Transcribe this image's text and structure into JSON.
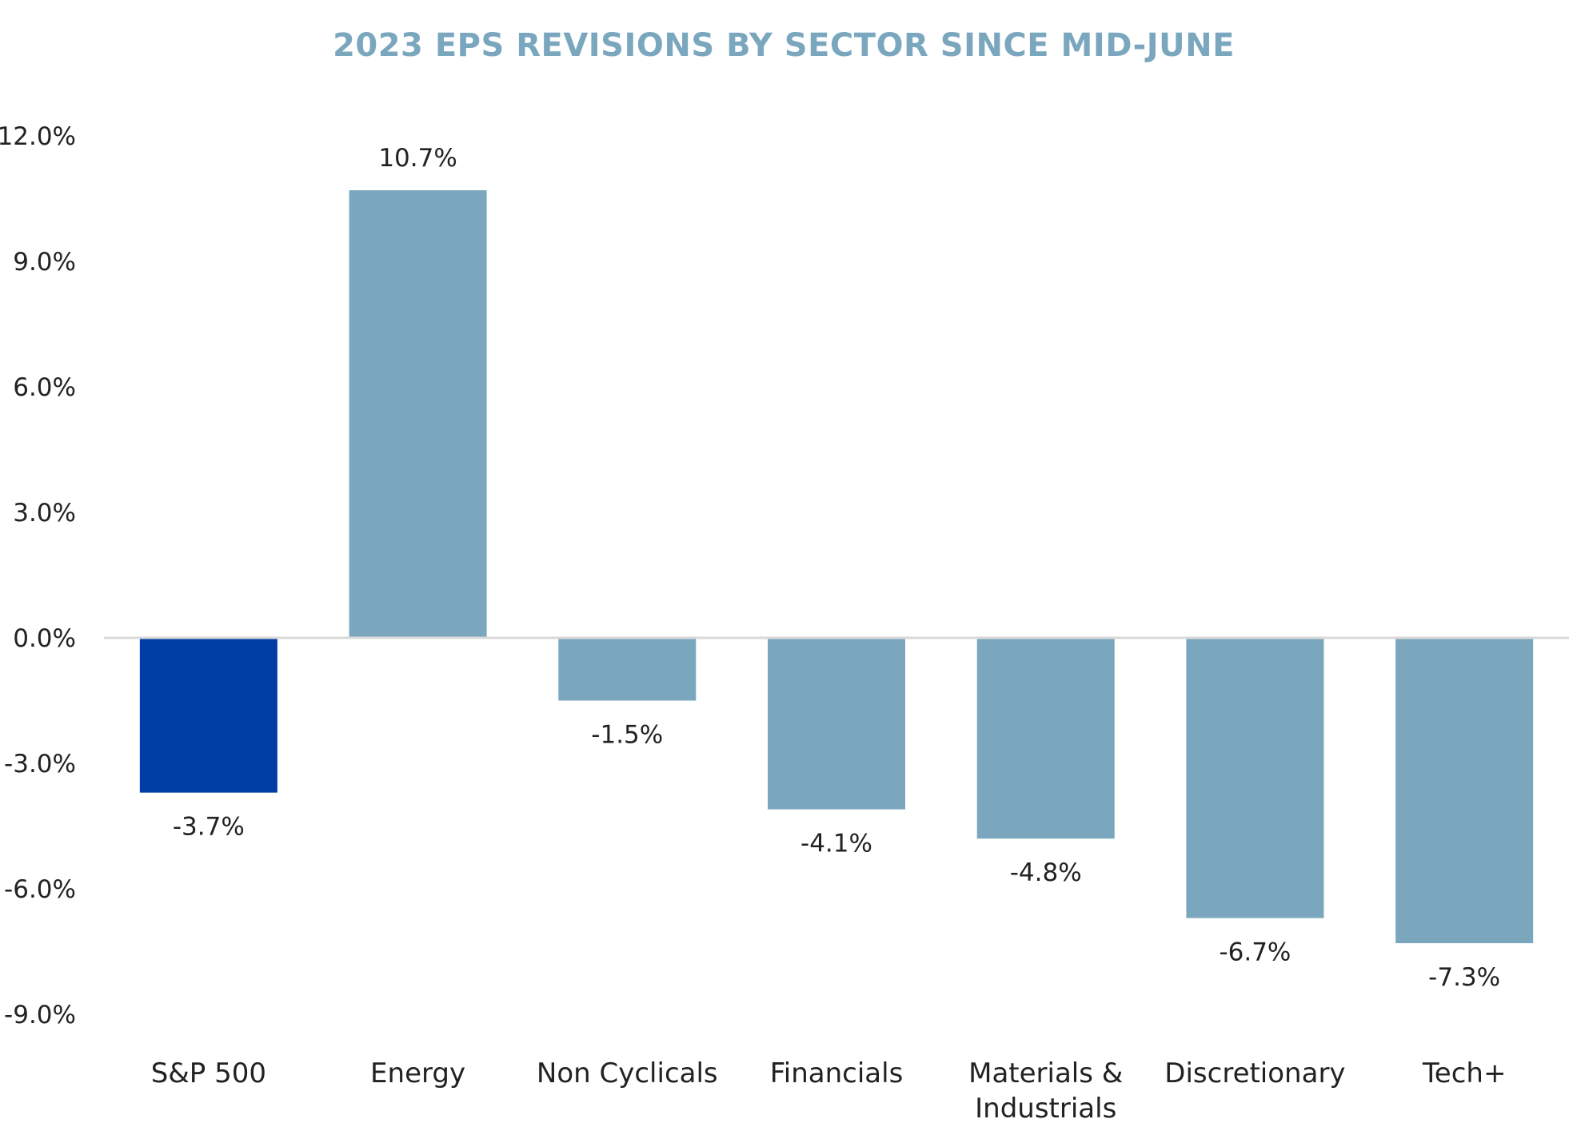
{
  "chart_data": {
    "type": "bar",
    "title": "2023 EPS REVISIONS BY SECTOR SINCE MID-JUNE",
    "xlabel": "",
    "ylabel": "",
    "categories": [
      "S&P 500",
      "Energy",
      "Non Cyclicals",
      "Financials",
      "Materials & Industrials",
      "Discretionary",
      "Tech+"
    ],
    "category_label_lines": [
      [
        "S&P 500"
      ],
      [
        "Energy"
      ],
      [
        "Non Cyclicals"
      ],
      [
        "Financials"
      ],
      [
        "Materials &",
        "Industrials"
      ],
      [
        "Discretionary"
      ],
      [
        "Tech+"
      ]
    ],
    "values": [
      -3.7,
      10.7,
      -1.5,
      -4.1,
      -4.8,
      -6.7,
      -7.3
    ],
    "data_labels": [
      "-3.7%",
      "10.7%",
      "-1.5%",
      "-4.1%",
      "-4.8%",
      "-6.7%",
      "-7.3%"
    ],
    "ylim": [
      -9.0,
      12.0
    ],
    "yticks": [
      12.0,
      9.0,
      6.0,
      3.0,
      0.0,
      -3.0,
      -6.0,
      -9.0
    ],
    "ytick_labels": [
      "12.0%",
      "9.0%",
      "6.0%",
      "3.0%",
      "0.0%",
      "-3.0%",
      "-6.0%",
      "-9.0%"
    ],
    "grid": false,
    "legend": "none",
    "highlight_category": "S&P 500",
    "colors": {
      "title": "#7aa7be",
      "bar": "#7aa7be",
      "highlight_bar": "#003da5",
      "zero_line": "#d9d9d9",
      "text": "#222222"
    }
  }
}
